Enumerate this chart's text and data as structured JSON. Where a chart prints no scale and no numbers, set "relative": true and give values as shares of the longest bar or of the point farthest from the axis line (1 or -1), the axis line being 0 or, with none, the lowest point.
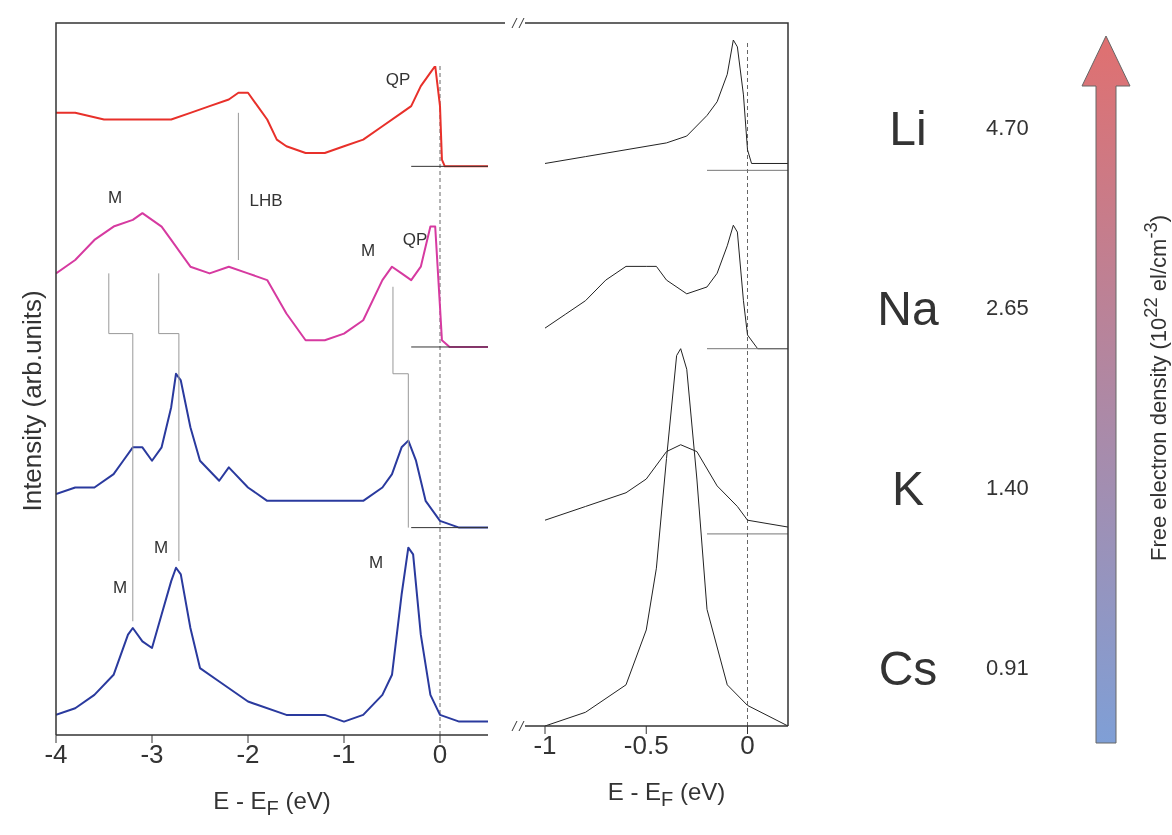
{
  "chart_data": [
    {
      "type": "line",
      "relative": true,
      "xlim": [
        -4,
        0.5
      ],
      "xticks": [
        -4,
        -3,
        -2,
        -1,
        0
      ],
      "xlabel": "E - E$_{F}$ (eV)",
      "ylabel": "Intensity (arb.units)",
      "series": [
        {
          "color": "#e8302a",
          "x": [
            -4,
            -3.8,
            -3.5,
            -3.2,
            -3,
            -2.8,
            -2.6,
            -2.4,
            -2.2,
            -2.1,
            -2,
            -1.9,
            -1.8,
            -1.7,
            -1.6,
            -1.4,
            -1.2,
            -1,
            -0.8,
            -0.6,
            -0.4,
            -0.3,
            -0.2,
            -0.1,
            -0.05,
            0,
            0.02,
            0.05,
            0.2,
            0.5
          ],
          "values": [
            0.93,
            0.93,
            0.92,
            0.92,
            0.92,
            0.92,
            0.93,
            0.94,
            0.95,
            0.96,
            0.96,
            0.94,
            0.92,
            0.89,
            0.88,
            0.87,
            0.87,
            0.88,
            0.89,
            0.91,
            0.93,
            0.94,
            0.97,
            0.99,
            1.0,
            0.94,
            0.86,
            0.85,
            0.85,
            0.85
          ]
        },
        {
          "color": "#d63aa0",
          "x": [
            -4,
            -3.8,
            -3.6,
            -3.4,
            -3.2,
            -3.1,
            -3,
            -2.9,
            -2.8,
            -2.6,
            -2.4,
            -2.2,
            -2,
            -1.8,
            -1.6,
            -1.4,
            -1.2,
            -1,
            -0.8,
            -0.6,
            -0.5,
            -0.4,
            -0.3,
            -0.2,
            -0.1,
            -0.05,
            0,
            0.02,
            0.1,
            0.5
          ],
          "values": [
            0.69,
            0.71,
            0.74,
            0.76,
            0.77,
            0.78,
            0.77,
            0.76,
            0.74,
            0.7,
            0.69,
            0.7,
            0.69,
            0.68,
            0.63,
            0.59,
            0.59,
            0.6,
            0.62,
            0.68,
            0.7,
            0.69,
            0.68,
            0.7,
            0.76,
            0.76,
            0.64,
            0.59,
            0.58,
            0.58
          ]
        },
        {
          "color": "#2a3a9e",
          "x": [
            -4,
            -3.8,
            -3.6,
            -3.4,
            -3.3,
            -3.2,
            -3.1,
            -3,
            -2.9,
            -2.8,
            -2.75,
            -2.7,
            -2.6,
            -2.5,
            -2.3,
            -2.2,
            -2,
            -1.8,
            -1.5,
            -1.2,
            -1,
            -0.8,
            -0.6,
            -0.5,
            -0.4,
            -0.33,
            -0.25,
            -0.15,
            0,
            0.2,
            0.5
          ],
          "values": [
            0.36,
            0.37,
            0.37,
            0.39,
            0.41,
            0.43,
            0.43,
            0.41,
            0.43,
            0.49,
            0.54,
            0.53,
            0.46,
            0.41,
            0.38,
            0.4,
            0.37,
            0.35,
            0.35,
            0.35,
            0.35,
            0.35,
            0.37,
            0.39,
            0.43,
            0.44,
            0.41,
            0.35,
            0.32,
            0.31,
            0.31
          ]
        },
        {
          "color": "#2a3a9e",
          "x": [
            -4,
            -3.8,
            -3.6,
            -3.4,
            -3.25,
            -3.2,
            -3.1,
            -3,
            -2.9,
            -2.8,
            -2.75,
            -2.7,
            -2.6,
            -2.5,
            -2.3,
            -2,
            -1.6,
            -1.2,
            -1,
            -0.8,
            -0.6,
            -0.5,
            -0.4,
            -0.33,
            -0.28,
            -0.2,
            -0.1,
            0,
            0.2,
            0.5
          ],
          "values": [
            0.03,
            0.04,
            0.06,
            0.09,
            0.15,
            0.16,
            0.14,
            0.13,
            0.18,
            0.23,
            0.25,
            0.24,
            0.16,
            0.1,
            0.08,
            0.05,
            0.03,
            0.03,
            0.02,
            0.03,
            0.06,
            0.09,
            0.21,
            0.28,
            0.27,
            0.15,
            0.06,
            0.03,
            0.02,
            0.02
          ]
        },
        {
          "color": "#333333",
          "x": [
            -0.3,
            0.5
          ],
          "values": [
            0.85,
            0.85
          ]
        },
        {
          "color": "#333333",
          "x": [
            -0.3,
            0.5
          ],
          "values": [
            0.58,
            0.58
          ]
        },
        {
          "color": "#333333",
          "x": [
            -0.3,
            0.5
          ],
          "values": [
            0.31,
            0.31
          ]
        },
        {
          "color": "#999999",
          "x": [
            -2.1,
            -2.1
          ],
          "values": [
            0.93,
            0.71
          ]
        },
        {
          "color": "#999999",
          "x": [
            -3.45,
            -3.45,
            -3.2,
            -3.2
          ],
          "values": [
            0.69,
            0.6,
            0.6,
            0.17
          ]
        },
        {
          "color": "#999999",
          "x": [
            -2.93,
            -2.93,
            -2.72,
            -2.72
          ],
          "values": [
            0.69,
            0.6,
            0.6,
            0.26
          ]
        },
        {
          "color": "#999999",
          "x": [
            -0.49,
            -0.49,
            -0.33,
            -0.33
          ],
          "values": [
            0.67,
            0.54,
            0.54,
            0.31
          ]
        }
      ],
      "ref_lines": [
        {
          "axis": "x",
          "value": 0,
          "color": "#666666",
          "line_style": "dashed"
        }
      ],
      "annotations": [
        "QP",
        "LHB",
        "M",
        "QP",
        "M",
        "M",
        "M",
        "M"
      ]
    },
    {
      "type": "line",
      "relative": true,
      "xlim": [
        -1,
        0.2
      ],
      "xticks": [
        -1,
        -0.5,
        0
      ],
      "xlabel": "E - E$_{F}$ (eV)",
      "series": [
        {
          "color": "#222222",
          "x": [
            -1,
            -0.8,
            -0.6,
            -0.4,
            -0.3,
            -0.2,
            -0.15,
            -0.1,
            -0.07,
            -0.05,
            -0.02,
            0,
            0.02,
            0.2
          ],
          "values": [
            0.82,
            0.83,
            0.84,
            0.85,
            0.86,
            0.89,
            0.91,
            0.95,
            1.0,
            0.99,
            0.92,
            0.84,
            0.82,
            0.82
          ]
        },
        {
          "color": "#222222",
          "x": [
            -1,
            -0.9,
            -0.8,
            -0.7,
            -0.6,
            -0.5,
            -0.45,
            -0.4,
            -0.3,
            -0.2,
            -0.15,
            -0.1,
            -0.07,
            -0.05,
            -0.02,
            0,
            0.05,
            0.2
          ],
          "values": [
            0.58,
            0.6,
            0.62,
            0.65,
            0.67,
            0.67,
            0.67,
            0.65,
            0.63,
            0.64,
            0.66,
            0.7,
            0.73,
            0.72,
            0.62,
            0.57,
            0.55,
            0.55
          ]
        },
        {
          "color": "#222222",
          "x": [
            -1,
            -0.8,
            -0.6,
            -0.5,
            -0.4,
            -0.33,
            -0.25,
            -0.15,
            -0.05,
            0,
            0.2
          ],
          "values": [
            0.3,
            0.32,
            0.34,
            0.36,
            0.4,
            0.41,
            0.4,
            0.35,
            0.32,
            0.3,
            0.29
          ]
        },
        {
          "color": "#222222",
          "x": [
            -1,
            -0.8,
            -0.6,
            -0.5,
            -0.45,
            -0.4,
            -0.35,
            -0.33,
            -0.3,
            -0.25,
            -0.2,
            -0.1,
            0,
            0.2
          ],
          "values": [
            0.0,
            0.02,
            0.06,
            0.14,
            0.23,
            0.39,
            0.54,
            0.55,
            0.52,
            0.36,
            0.17,
            0.06,
            0.03,
            0.0
          ]
        },
        {
          "color": "#777777",
          "x": [
            -0.2,
            0.2
          ],
          "values": [
            0.81,
            0.81
          ]
        },
        {
          "color": "#777777",
          "x": [
            -0.2,
            0.2
          ],
          "values": [
            0.55,
            0.55
          ]
        },
        {
          "color": "#777777",
          "x": [
            -0.2,
            0.2
          ],
          "values": [
            0.28,
            0.28
          ]
        }
      ],
      "ref_lines": [
        {
          "axis": "x",
          "value": 0,
          "color": "#666666",
          "line_style": "dashed"
        }
      ]
    },
    {
      "type": "other",
      "categories": [
        "Li",
        "Na",
        "K",
        "Cs"
      ],
      "value_labels": [
        "4.70",
        "2.65",
        "1.40",
        "0.91"
      ],
      "ylabel": "Free electron density (10$^{22}$ el/cm$^{-3}$)"
    }
  ]
}
